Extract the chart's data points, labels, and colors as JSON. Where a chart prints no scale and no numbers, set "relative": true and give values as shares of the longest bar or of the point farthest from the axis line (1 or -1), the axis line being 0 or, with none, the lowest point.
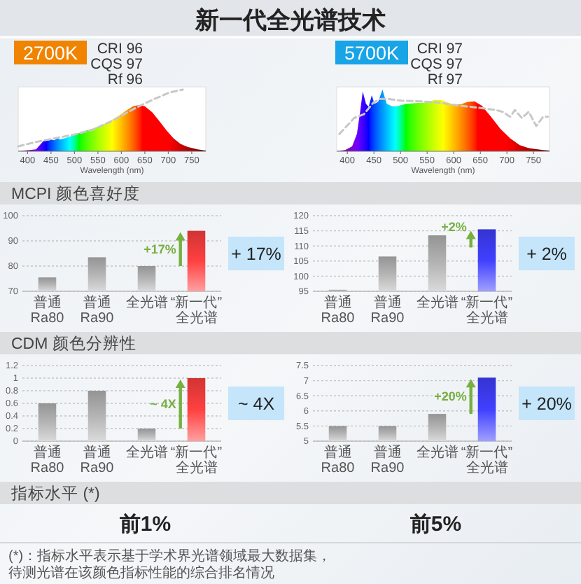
{
  "chart_data": [
    {
      "type": "other",
      "title": "新一代全光谱技术"
    },
    {
      "type": "area",
      "title": "2700K",
      "annotations": [
        "CRI 96",
        "CQS 97",
        "Rf 96"
      ],
      "relative": true,
      "tick_labels": "x",
      "xlabel": "Wavelength (nm)",
      "xlim": [
        380,
        780
      ],
      "xticks": [
        400,
        450,
        500,
        550,
        600,
        650,
        700,
        750
      ],
      "series": [
        {
          "x": [
            380,
            418,
            433,
            438,
            443,
            450,
            457,
            464,
            469,
            479,
            499,
            519,
            539,
            560,
            580,
            595,
            610,
            625,
            638,
            650,
            666,
            681,
            696,
            711,
            726,
            741,
            762,
            780
          ],
          "values": [
            0,
            0.03,
            0.16,
            0.18,
            0.17,
            0.19,
            0.18,
            0.21,
            0.19,
            0.21,
            0.26,
            0.32,
            0.37,
            0.43,
            0.51,
            0.58,
            0.66,
            0.73,
            0.75,
            0.73,
            0.63,
            0.49,
            0.34,
            0.21,
            0.12,
            0.07,
            0.03,
            0.01
          ]
        },
        {
          "type": "line",
          "line_style": "dashed",
          "color": "#c8c8c8",
          "x": [
            380,
            418,
            458,
            499,
            539,
            580,
            610,
            640,
            671,
            701,
            731
          ],
          "values": [
            0.08,
            0.15,
            0.21,
            0.27,
            0.35,
            0.49,
            0.62,
            0.74,
            0.85,
            0.95,
            1
          ]
        }
      ]
    },
    {
      "type": "area",
      "title": "5700K",
      "annotations": [
        "CRI 97",
        "CQS 97",
        "Rf 97"
      ],
      "relative": true,
      "tick_labels": "x",
      "xlabel": "Wavelength (nm)",
      "xlim": [
        380,
        780
      ],
      "xticks": [
        400,
        450,
        500,
        550,
        600,
        650,
        700,
        750
      ],
      "series": [
        {
          "x": [
            380,
            396,
            409,
            418,
            424,
            429,
            435,
            440,
            446,
            451,
            458,
            466,
            474,
            484,
            493,
            511,
            529,
            546,
            564,
            577,
            595,
            613,
            626,
            639,
            653,
            670,
            688,
            706,
            724,
            741,
            768,
            780
          ],
          "values": [
            0,
            0.02,
            0.08,
            0.28,
            0.64,
            0.97,
            0.77,
            0.72,
            0.91,
            0.77,
            0.8,
            1,
            0.77,
            0.73,
            0.73,
            0.77,
            0.78,
            0.79,
            0.83,
            0.83,
            0.77,
            0.76,
            0.8,
            0.81,
            0.74,
            0.56,
            0.36,
            0.21,
            0.1,
            0.05,
            0.02,
            0.01
          ]
        },
        {
          "type": "line",
          "line_style": "dashed",
          "color": "#c8c8c8",
          "x": [
            385,
            413,
            431,
            449,
            462,
            475,
            502,
            537,
            573,
            608,
            634,
            661,
            679,
            692,
            706,
            715,
            728,
            741,
            755,
            768,
            777
          ],
          "values": [
            0.28,
            0.54,
            0.6,
            0.79,
            0.85,
            0.85,
            0.82,
            0.81,
            0.79,
            0.74,
            0.72,
            0.69,
            0.67,
            0.64,
            0.56,
            0.67,
            0.54,
            0.64,
            0.41,
            0.56,
            0.56
          ]
        }
      ]
    },
    {
      "type": "bar",
      "title": "MCPI 颜色喜好度",
      "categories": [
        "普通Ra80",
        "普通Ra90",
        "全光谱",
        "“新一代”全光谱"
      ],
      "values": [
        75.5,
        83.5,
        80,
        94
      ],
      "colors": [
        "#b4b4b4",
        "#b4b4b4",
        "#b4b4b4",
        "#ff4040"
      ],
      "ylim": [
        70,
        100
      ],
      "yticks": [
        70,
        80,
        90,
        100
      ],
      "grid": "y",
      "annotations": [
        "+17%",
        "+ 17%"
      ]
    },
    {
      "type": "bar",
      "categories": [
        "普通Ra80",
        "普通Ra90",
        "全光谱",
        "“新一代”全光谱"
      ],
      "values": [
        95.5,
        106.5,
        113.5,
        115.5
      ],
      "colors": [
        "#b4b4b4",
        "#b4b4b4",
        "#b4b4b4",
        "#4040ff"
      ],
      "ylim": [
        95,
        120
      ],
      "yticks": [
        95,
        100,
        105,
        110,
        115,
        120
      ],
      "grid": "y",
      "annotations": [
        "+2%",
        "+ 2%"
      ]
    },
    {
      "type": "bar",
      "title": "CDM 颜色分辨性",
      "categories": [
        "普通Ra80",
        "普通Ra90",
        "全光谱",
        "“新一代”全光谱"
      ],
      "values": [
        0.6,
        0.8,
        0.2,
        1
      ],
      "colors": [
        "#b4b4b4",
        "#b4b4b4",
        "#b4b4b4",
        "#ff4040"
      ],
      "ylim": [
        0,
        1.2
      ],
      "yticks": [
        0,
        0.2,
        0.4,
        0.6,
        0.8,
        1,
        1.2
      ],
      "grid": "y",
      "annotations": [
        "~ 4X",
        "~ 4X"
      ]
    },
    {
      "type": "bar",
      "categories": [
        "普通Ra80",
        "普通Ra90",
        "全光谱",
        "“新一代”全光谱"
      ],
      "values": [
        5.5,
        5.5,
        5.9,
        7.1
      ],
      "colors": [
        "#b4b4b4",
        "#b4b4b4",
        "#b4b4b4",
        "#4040ff"
      ],
      "ylim": [
        5,
        7.5
      ],
      "yticks": [
        5,
        5.5,
        6,
        6.5,
        7,
        7.5
      ],
      "grid": "y",
      "annotations": [
        "+20%",
        "+ 20%"
      ]
    },
    {
      "type": "other",
      "title": "指标水平 (*)",
      "annotations": [
        "前1%",
        "前5%",
        "(*)：指标水平表示基于学术界光谱领域最大数据集，待测光谱在该颜色指标性能的综合排名情况"
      ]
    }
  ]
}
